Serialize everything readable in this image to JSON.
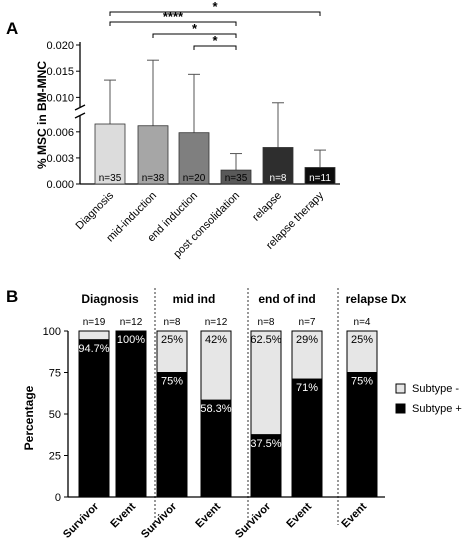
{
  "colors": {
    "black": "#000000",
    "bar_outline": "#333333",
    "light": "#e6e6e6"
  },
  "chart_data": [
    {
      "type": "bar",
      "panel_label": "A",
      "ylabel": "% MSC in BM-MNC",
      "categories": [
        "Diagnosis",
        "mid-induction",
        "end induction",
        "post consolidation",
        "relapse",
        "relapse therapy"
      ],
      "values": [
        0.0069,
        0.0067,
        0.0059,
        0.0016,
        0.0042,
        0.0019
      ],
      "error_upper": [
        0.0133,
        0.0171,
        0.0144,
        0.0035,
        0.0092,
        0.0039
      ],
      "n_labels": [
        "n=35",
        "n=38",
        "n=20",
        "n=35",
        "n=8",
        "n=11"
      ],
      "colors": [
        "#dcdcdc",
        "#a6a6a6",
        "#7f7f7f",
        "#595959",
        "#2e2e2e",
        "#0d0d0d"
      ],
      "n_label_colors": [
        "#000000",
        "#000000",
        "#000000",
        "#000000",
        "#ffffff",
        "#ffffff"
      ],
      "yticks_lower": [
        "0.000",
        "0.003",
        "0.006"
      ],
      "yticks_upper": [
        "0.010",
        "0.015",
        "0.020"
      ],
      "axis_break": true,
      "significance": [
        {
          "from": 0,
          "to": 5,
          "label": "*"
        },
        {
          "from": 0,
          "to": 3,
          "label": "****"
        },
        {
          "from": 1,
          "to": 3,
          "label": "*"
        },
        {
          "from": 2,
          "to": 3,
          "label": "*"
        }
      ]
    },
    {
      "type": "bar",
      "stacked": true,
      "panel_label": "B",
      "ylabel": "Percentage",
      "ylim": [
        0,
        100
      ],
      "yticks": [
        "0",
        "25",
        "50",
        "75",
        "100"
      ],
      "legend": [
        {
          "label": "Subtype -",
          "color": "#e6e6e6"
        },
        {
          "label": "Subtype +",
          "color": "#000000"
        }
      ],
      "groups": [
        {
          "title": "Diagnosis",
          "bars": [
            {
              "x": "Survivor",
              "n": "n=19",
              "plus": 94.7,
              "plus_label": "94.7%",
              "minus_label": ""
            },
            {
              "x": "Event",
              "n": "n=12",
              "plus": 100,
              "plus_label": "100%",
              "minus_label": ""
            }
          ]
        },
        {
          "title": "mid ind",
          "bars": [
            {
              "x": "Survivor",
              "n": "n=8",
              "plus": 75,
              "plus_label": "75%",
              "minus_label": "25%"
            },
            {
              "x": "Event",
              "n": "n=12",
              "plus": 58.3,
              "plus_label": "58.3%",
              "minus_label": "42%"
            }
          ]
        },
        {
          "title": "end of ind",
          "bars": [
            {
              "x": "Survivor",
              "n": "n=8",
              "plus": 37.5,
              "plus_label": "37.5%",
              "minus_label": "62.5%"
            },
            {
              "x": "Event",
              "n": "n=7",
              "plus": 71,
              "plus_label": "71%",
              "minus_label": "29%"
            }
          ]
        },
        {
          "title": "relapse Dx",
          "bars": [
            {
              "x": "Event",
              "n": "n=4",
              "plus": 75,
              "plus_label": "75%",
              "minus_label": "25%"
            }
          ]
        }
      ]
    }
  ]
}
